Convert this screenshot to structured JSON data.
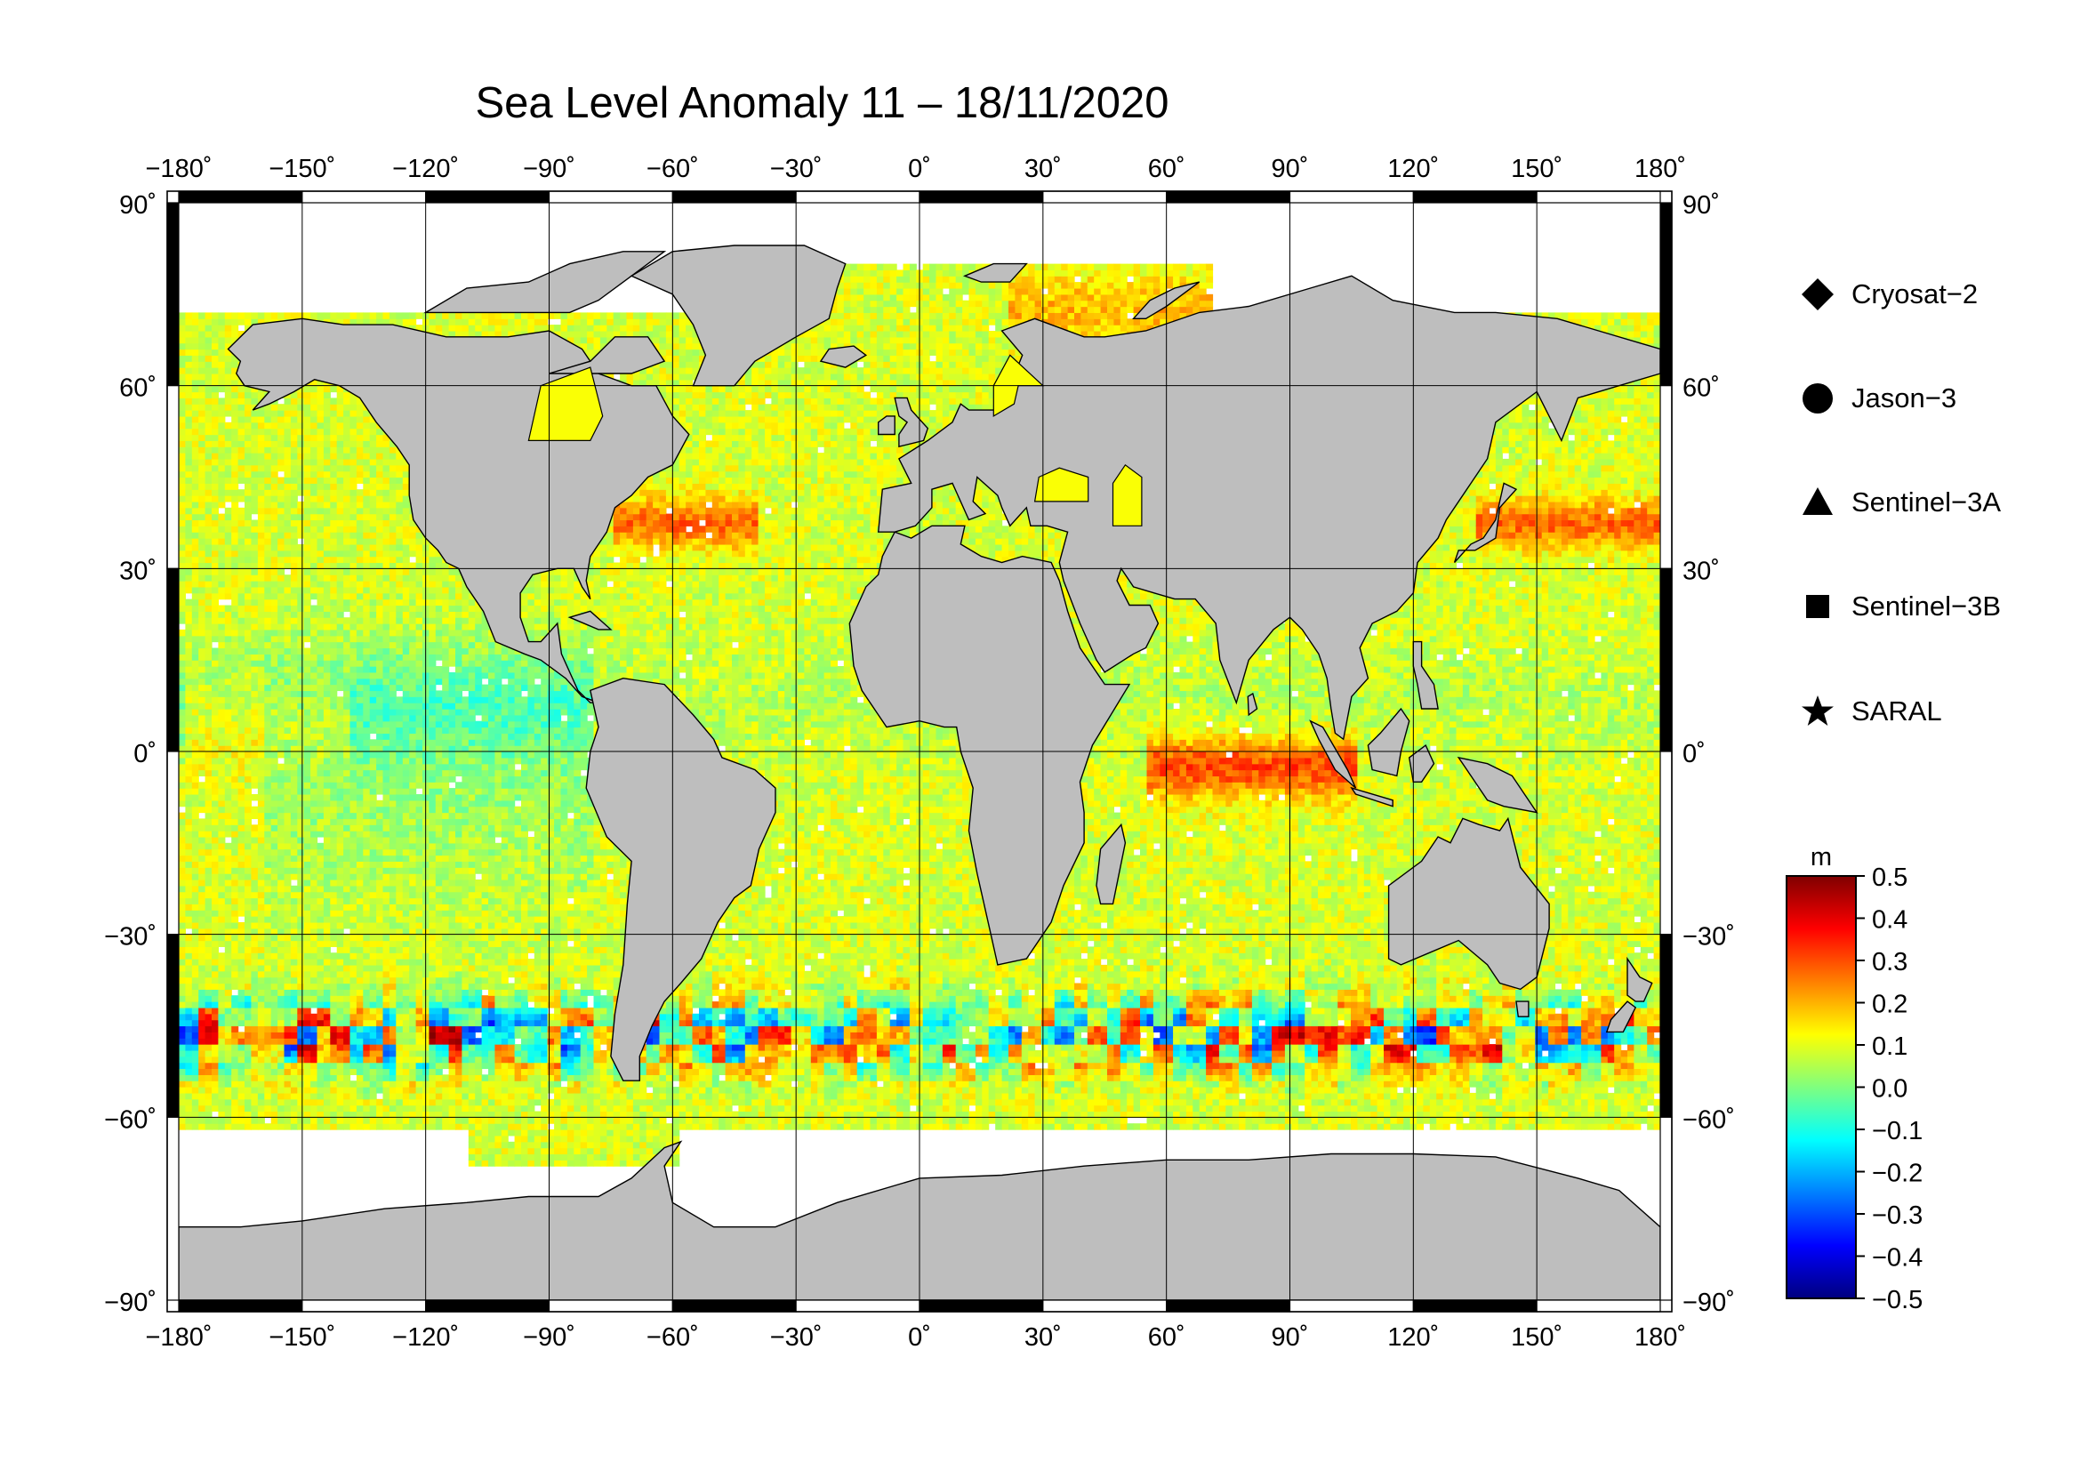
{
  "title": "Sea Level Anomaly 11 – 18/11/2020",
  "axes": {
    "lon_ticks": [
      {
        "value": -180,
        "label": "−180˚"
      },
      {
        "value": -150,
        "label": "−150˚"
      },
      {
        "value": -120,
        "label": "−120˚"
      },
      {
        "value": -90,
        "label": "−90˚"
      },
      {
        "value": -60,
        "label": "−60˚"
      },
      {
        "value": -30,
        "label": "−30˚"
      },
      {
        "value": 0,
        "label": "0˚"
      },
      {
        "value": 30,
        "label": "30˚"
      },
      {
        "value": 60,
        "label": "60˚"
      },
      {
        "value": 90,
        "label": "90˚"
      },
      {
        "value": 120,
        "label": "120˚"
      },
      {
        "value": 150,
        "label": "150˚"
      },
      {
        "value": 180,
        "label": "180˚"
      }
    ],
    "lat_ticks": [
      {
        "value": 90,
        "label": "90˚"
      },
      {
        "value": 60,
        "label": "60˚"
      },
      {
        "value": 30,
        "label": "30˚"
      },
      {
        "value": 0,
        "label": "0˚"
      },
      {
        "value": -30,
        "label": "−30˚"
      },
      {
        "value": -60,
        "label": "−60˚"
      },
      {
        "value": -90,
        "label": "−90˚"
      }
    ]
  },
  "legend": [
    {
      "label": "Cryosat−2",
      "symbol": "diamond-icon"
    },
    {
      "label": "Jason−3",
      "symbol": "circle-icon"
    },
    {
      "label": "Sentinel−3A",
      "symbol": "triangle-icon"
    },
    {
      "label": "Sentinel−3B",
      "symbol": "square-icon"
    },
    {
      "label": "SARAL",
      "symbol": "star-icon"
    }
  ],
  "colorbar": {
    "unit": "m",
    "min": -0.5,
    "max": 0.5,
    "ticks": [
      {
        "value": 0.5,
        "label": "0.5"
      },
      {
        "value": 0.4,
        "label": "0.4"
      },
      {
        "value": 0.3,
        "label": "0.3"
      },
      {
        "value": 0.2,
        "label": "0.2"
      },
      {
        "value": 0.1,
        "label": "0.1"
      },
      {
        "value": 0.0,
        "label": "0.0"
      },
      {
        "value": -0.1,
        "label": "−0.1"
      },
      {
        "value": -0.2,
        "label": "−0.2"
      },
      {
        "value": -0.3,
        "label": "−0.3"
      },
      {
        "value": -0.4,
        "label": "−0.4"
      },
      {
        "value": -0.5,
        "label": "−0.5"
      }
    ],
    "colors": [
      "#00007f",
      "#0000ff",
      "#007fff",
      "#00ffff",
      "#7fff7f",
      "#ffff00",
      "#ff7f00",
      "#ff0000",
      "#7f0000"
    ]
  },
  "colors": {
    "land": "#bebebe",
    "no_data": "#ffffff",
    "frame": "#000000"
  }
}
